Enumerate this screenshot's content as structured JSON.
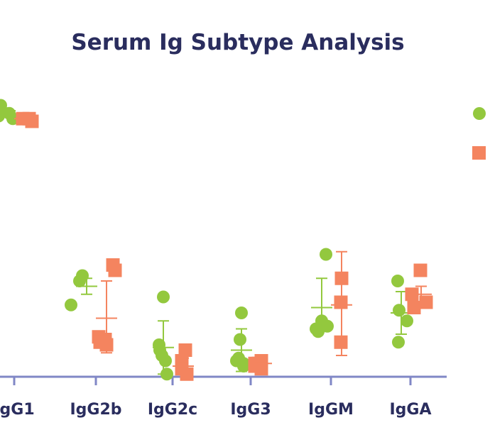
{
  "chart_data": {
    "type": "scatter",
    "title": "Serum Ig Subtype Analysis",
    "xlabel": "",
    "ylabel": "",
    "categories": [
      "IgG1",
      "IgG2b",
      "IgG2c",
      "IgG3",
      "IgGM",
      "IgGA"
    ],
    "ylim": [
      0,
      100
    ],
    "legend_position": "right",
    "grid": false,
    "colors": {
      "series_a": "#93c83e",
      "series_b": "#f4845f",
      "axis": "#8087c6",
      "text": "#2a2d5e"
    },
    "series": [
      {
        "marker": "circle",
        "values": [
          [
            102,
            100,
            99,
            98,
            97
          ],
          [
            36,
            38,
            27
          ],
          [
            30,
            12,
            10,
            8,
            6,
            1
          ],
          [
            24,
            14,
            7,
            6,
            5,
            4
          ],
          [
            46,
            21,
            19,
            18,
            17
          ],
          [
            36,
            25,
            21,
            13
          ]
        ],
        "mean": [
          100,
          34,
          11,
          10,
          26,
          24
        ],
        "sd_high": [
          101,
          37,
          21,
          18,
          37,
          32
        ],
        "sd_low": [
          99,
          31,
          1,
          2,
          17,
          16
        ]
      },
      {
        "marker": "square",
        "values": [
          [
            97,
            97,
            96
          ],
          [
            42,
            40,
            15,
            14,
            13,
            12
          ],
          [
            10,
            6,
            4,
            3,
            1
          ],
          [
            6,
            5,
            5,
            4,
            3
          ],
          [
            37,
            28,
            13
          ],
          [
            40,
            31,
            28,
            26
          ]
        ],
        "mean": [
          97,
          22,
          4,
          5,
          27,
          31
        ],
        "sd_high": [
          97,
          36,
          7,
          6,
          47,
          34
        ],
        "sd_low": [
          97,
          9,
          1,
          4,
          8,
          28
        ]
      }
    ]
  }
}
